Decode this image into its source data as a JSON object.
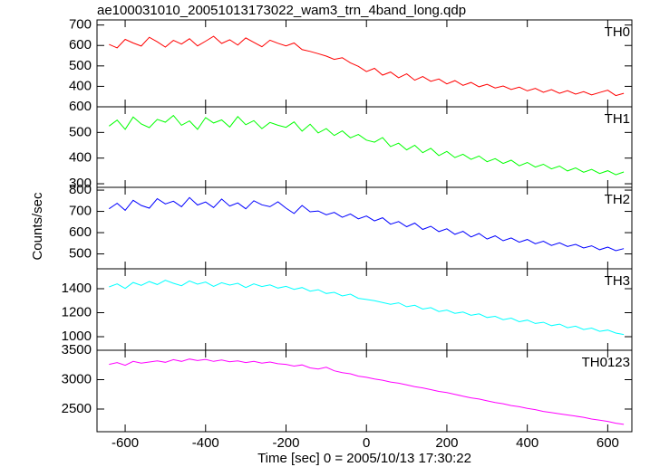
{
  "chart_data": {
    "type": "line",
    "title": "ae100031010_20051013173022_wam3_trn_4band_long.qdp",
    "xlabel": "Time [sec] 0 = 2005/10/13 17:30:22",
    "ylabel": "Counts/sec",
    "xlim": [
      -670,
      660
    ],
    "xticks": [
      -600,
      -400,
      -200,
      0,
      200,
      400,
      600
    ],
    "x": [
      -640,
      -620,
      -600,
      -580,
      -560,
      -540,
      -520,
      -500,
      -480,
      -460,
      -440,
      -420,
      -400,
      -380,
      -360,
      -340,
      -320,
      -300,
      -280,
      -260,
      -240,
      -220,
      -200,
      -180,
      -160,
      -140,
      -120,
      -100,
      -80,
      -60,
      -40,
      -20,
      0,
      20,
      40,
      60,
      80,
      100,
      120,
      140,
      160,
      180,
      200,
      220,
      240,
      260,
      280,
      300,
      320,
      340,
      360,
      380,
      400,
      420,
      440,
      460,
      480,
      500,
      520,
      540,
      560,
      580,
      600,
      620,
      640
    ],
    "series": [
      {
        "name": "TH0",
        "color": "#ff0000",
        "ylim": [
          300,
          725
        ],
        "yticks": [
          400,
          500,
          600,
          700
        ],
        "values": [
          605,
          588,
          630,
          612,
          597,
          640,
          618,
          592,
          625,
          607,
          633,
          598,
          621,
          645,
          610,
          628,
          602,
          637,
          615,
          594,
          626,
          611,
          598,
          612,
          580,
          571,
          560,
          548,
          532,
          540,
          515,
          498,
          472,
          488,
          455,
          470,
          442,
          461,
          430,
          448,
          425,
          436,
          412,
          428,
          405,
          419,
          398,
          410,
          392,
          402,
          385,
          396,
          378,
          390,
          371,
          384,
          366,
          379,
          362,
          374,
          358,
          370,
          381,
          355,
          366
        ]
      },
      {
        "name": "TH1",
        "color": "#00ff00",
        "ylim": [
          286,
          600
        ],
        "yticks": [
          300,
          400,
          500,
          600
        ],
        "values": [
          525,
          548,
          512,
          560,
          533,
          519,
          551,
          540,
          566,
          528,
          545,
          512,
          558,
          537,
          549,
          521,
          562,
          530,
          546,
          515,
          539,
          528,
          520,
          541,
          505,
          532,
          498,
          515,
          488,
          506,
          479,
          492,
          470,
          462,
          480,
          445,
          458,
          432,
          450,
          421,
          438,
          410,
          426,
          402,
          415,
          395,
          408,
          386,
          398,
          379,
          392,
          370,
          383,
          365,
          376,
          358,
          369,
          350,
          362,
          345,
          356,
          340,
          351,
          335,
          346
        ]
      },
      {
        "name": "TH2",
        "color": "#0000ff",
        "ylim": [
          430,
          813
        ],
        "yticks": [
          500,
          600,
          700,
          800
        ],
        "values": [
          712,
          738,
          705,
          752,
          728,
          715,
          760,
          735,
          748,
          722,
          765,
          730,
          744,
          718,
          758,
          725,
          740,
          712,
          750,
          731,
          722,
          745,
          715,
          690,
          728,
          698,
          702,
          684,
          695,
          672,
          688,
          665,
          678,
          655,
          670,
          640,
          652,
          628,
          645,
          615,
          630,
          605,
          618,
          592,
          606,
          580,
          596,
          570,
          585,
          562,
          575,
          555,
          568,
          548,
          560,
          540,
          552,
          535,
          545,
          528,
          538,
          520,
          532,
          515,
          525
        ]
      },
      {
        "name": "TH3",
        "color": "#00ffff",
        "ylim": [
          887,
          1566
        ],
        "yticks": [
          1000,
          1200,
          1400
        ],
        "values": [
          1415,
          1440,
          1402,
          1452,
          1428,
          1460,
          1435,
          1470,
          1445,
          1425,
          1465,
          1438,
          1455,
          1420,
          1450,
          1430,
          1445,
          1410,
          1440,
          1418,
          1432,
          1405,
          1420,
          1395,
          1410,
          1380,
          1392,
          1360,
          1370,
          1340,
          1355,
          1320,
          1310,
          1300,
          1285,
          1270,
          1282,
          1250,
          1262,
          1230,
          1242,
          1210,
          1222,
          1195,
          1205,
          1178,
          1190,
          1160,
          1170,
          1142,
          1155,
          1125,
          1138,
          1110,
          1120,
          1092,
          1105,
          1075,
          1088,
          1060,
          1072,
          1045,
          1055,
          1030,
          1018
        ]
      },
      {
        "name": "TH0123",
        "color": "#ff00ff",
        "ylim": [
          2115,
          3500
        ],
        "yticks": [
          2500,
          3000,
          3500
        ],
        "values": [
          3260,
          3290,
          3245,
          3310,
          3280,
          3300,
          3320,
          3295,
          3340,
          3310,
          3350,
          3325,
          3345,
          3310,
          3335,
          3305,
          3320,
          3290,
          3310,
          3280,
          3300,
          3270,
          3260,
          3230,
          3250,
          3200,
          3180,
          3210,
          3150,
          3120,
          3100,
          3060,
          3040,
          3010,
          2990,
          2960,
          2940,
          2910,
          2880,
          2860,
          2830,
          2800,
          2780,
          2750,
          2720,
          2690,
          2670,
          2640,
          2610,
          2590,
          2560,
          2540,
          2510,
          2490,
          2460,
          2440,
          2420,
          2400,
          2380,
          2360,
          2330,
          2310,
          2290,
          2260,
          2240
        ]
      }
    ]
  }
}
